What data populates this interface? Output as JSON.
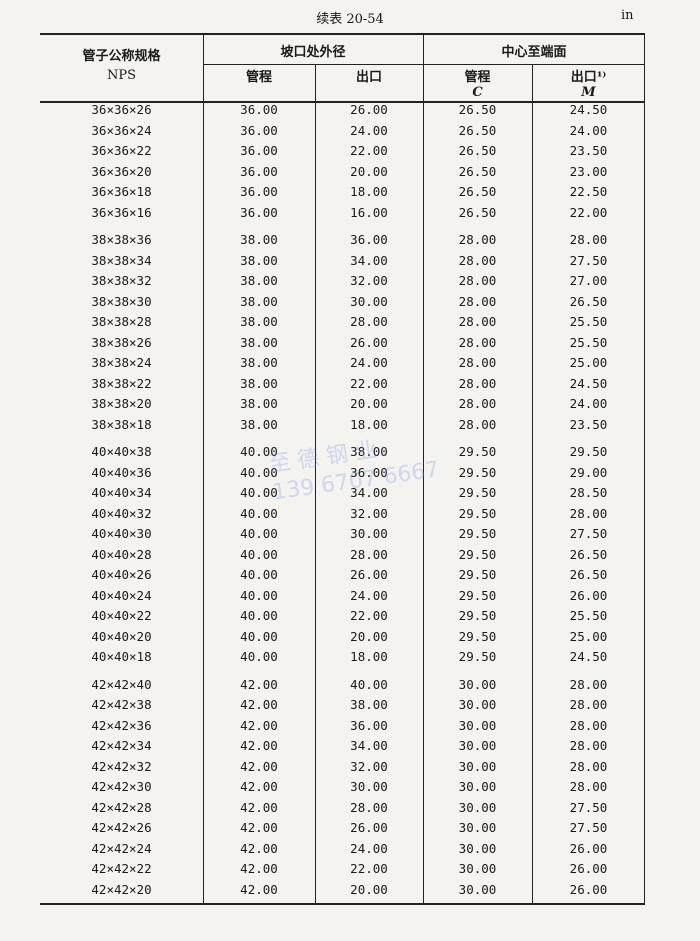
{
  "caption": "续表 20-54",
  "unit": "in",
  "watermark": {
    "line1": "至 德 钢 业",
    "line2": "139 6707 6667"
  },
  "headers": {
    "nps": "管子公称规格",
    "nps_sub": "NPS",
    "bevel_od": "坡口处外径",
    "center_to_end": "中心至端面",
    "run": "管程",
    "outlet": "出口",
    "run2": "管程",
    "outlet2": "出口¹⁾",
    "c": "C",
    "m": "M"
  },
  "groups": [
    [
      [
        "36×36×26",
        "36.00",
        "26.00",
        "26.50",
        "24.50"
      ],
      [
        "36×36×24",
        "36.00",
        "24.00",
        "26.50",
        "24.00"
      ],
      [
        "36×36×22",
        "36.00",
        "22.00",
        "26.50",
        "23.50"
      ],
      [
        "36×36×20",
        "36.00",
        "20.00",
        "26.50",
        "23.00"
      ],
      [
        "36×36×18",
        "36.00",
        "18.00",
        "26.50",
        "22.50"
      ],
      [
        "36×36×16",
        "36.00",
        "16.00",
        "26.50",
        "22.00"
      ]
    ],
    [
      [
        "38×38×36",
        "38.00",
        "36.00",
        "28.00",
        "28.00"
      ],
      [
        "38×38×34",
        "38.00",
        "34.00",
        "28.00",
        "27.50"
      ],
      [
        "38×38×32",
        "38.00",
        "32.00",
        "28.00",
        "27.00"
      ],
      [
        "38×38×30",
        "38.00",
        "30.00",
        "28.00",
        "26.50"
      ],
      [
        "38×38×28",
        "38.00",
        "28.00",
        "28.00",
        "25.50"
      ],
      [
        "38×38×26",
        "38.00",
        "26.00",
        "28.00",
        "25.50"
      ],
      [
        "38×38×24",
        "38.00",
        "24.00",
        "28.00",
        "25.00"
      ],
      [
        "38×38×22",
        "38.00",
        "22.00",
        "28.00",
        "24.50"
      ],
      [
        "38×38×20",
        "38.00",
        "20.00",
        "28.00",
        "24.00"
      ],
      [
        "38×38×18",
        "38.00",
        "18.00",
        "28.00",
        "23.50"
      ]
    ],
    [
      [
        "40×40×38",
        "40.00",
        "38.00",
        "29.50",
        "29.50"
      ],
      [
        "40×40×36",
        "40.00",
        "36.00",
        "29.50",
        "29.00"
      ],
      [
        "40×40×34",
        "40.00",
        "34.00",
        "29.50",
        "28.50"
      ],
      [
        "40×40×32",
        "40.00",
        "32.00",
        "29.50",
        "28.00"
      ],
      [
        "40×40×30",
        "40.00",
        "30.00",
        "29.50",
        "27.50"
      ],
      [
        "40×40×28",
        "40.00",
        "28.00",
        "29.50",
        "26.50"
      ],
      [
        "40×40×26",
        "40.00",
        "26.00",
        "29.50",
        "26.50"
      ],
      [
        "40×40×24",
        "40.00",
        "24.00",
        "29.50",
        "26.00"
      ],
      [
        "40×40×22",
        "40.00",
        "22.00",
        "29.50",
        "25.50"
      ],
      [
        "40×40×20",
        "40.00",
        "20.00",
        "29.50",
        "25.00"
      ],
      [
        "40×40×18",
        "40.00",
        "18.00",
        "29.50",
        "24.50"
      ]
    ],
    [
      [
        "42×42×40",
        "42.00",
        "40.00",
        "30.00",
        "28.00"
      ],
      [
        "42×42×38",
        "42.00",
        "38.00",
        "30.00",
        "28.00"
      ],
      [
        "42×42×36",
        "42.00",
        "36.00",
        "30.00",
        "28.00"
      ],
      [
        "42×42×34",
        "42.00",
        "34.00",
        "30.00",
        "28.00"
      ],
      [
        "42×42×32",
        "42.00",
        "32.00",
        "30.00",
        "28.00"
      ],
      [
        "42×42×30",
        "42.00",
        "30.00",
        "30.00",
        "28.00"
      ],
      [
        "42×42×28",
        "42.00",
        "28.00",
        "30.00",
        "27.50"
      ],
      [
        "42×42×26",
        "42.00",
        "26.00",
        "30.00",
        "27.50"
      ],
      [
        "42×42×24",
        "42.00",
        "24.00",
        "30.00",
        "26.00"
      ],
      [
        "42×42×22",
        "42.00",
        "22.00",
        "30.00",
        "26.00"
      ],
      [
        "42×42×20",
        "42.00",
        "20.00",
        "30.00",
        "26.00"
      ]
    ]
  ]
}
